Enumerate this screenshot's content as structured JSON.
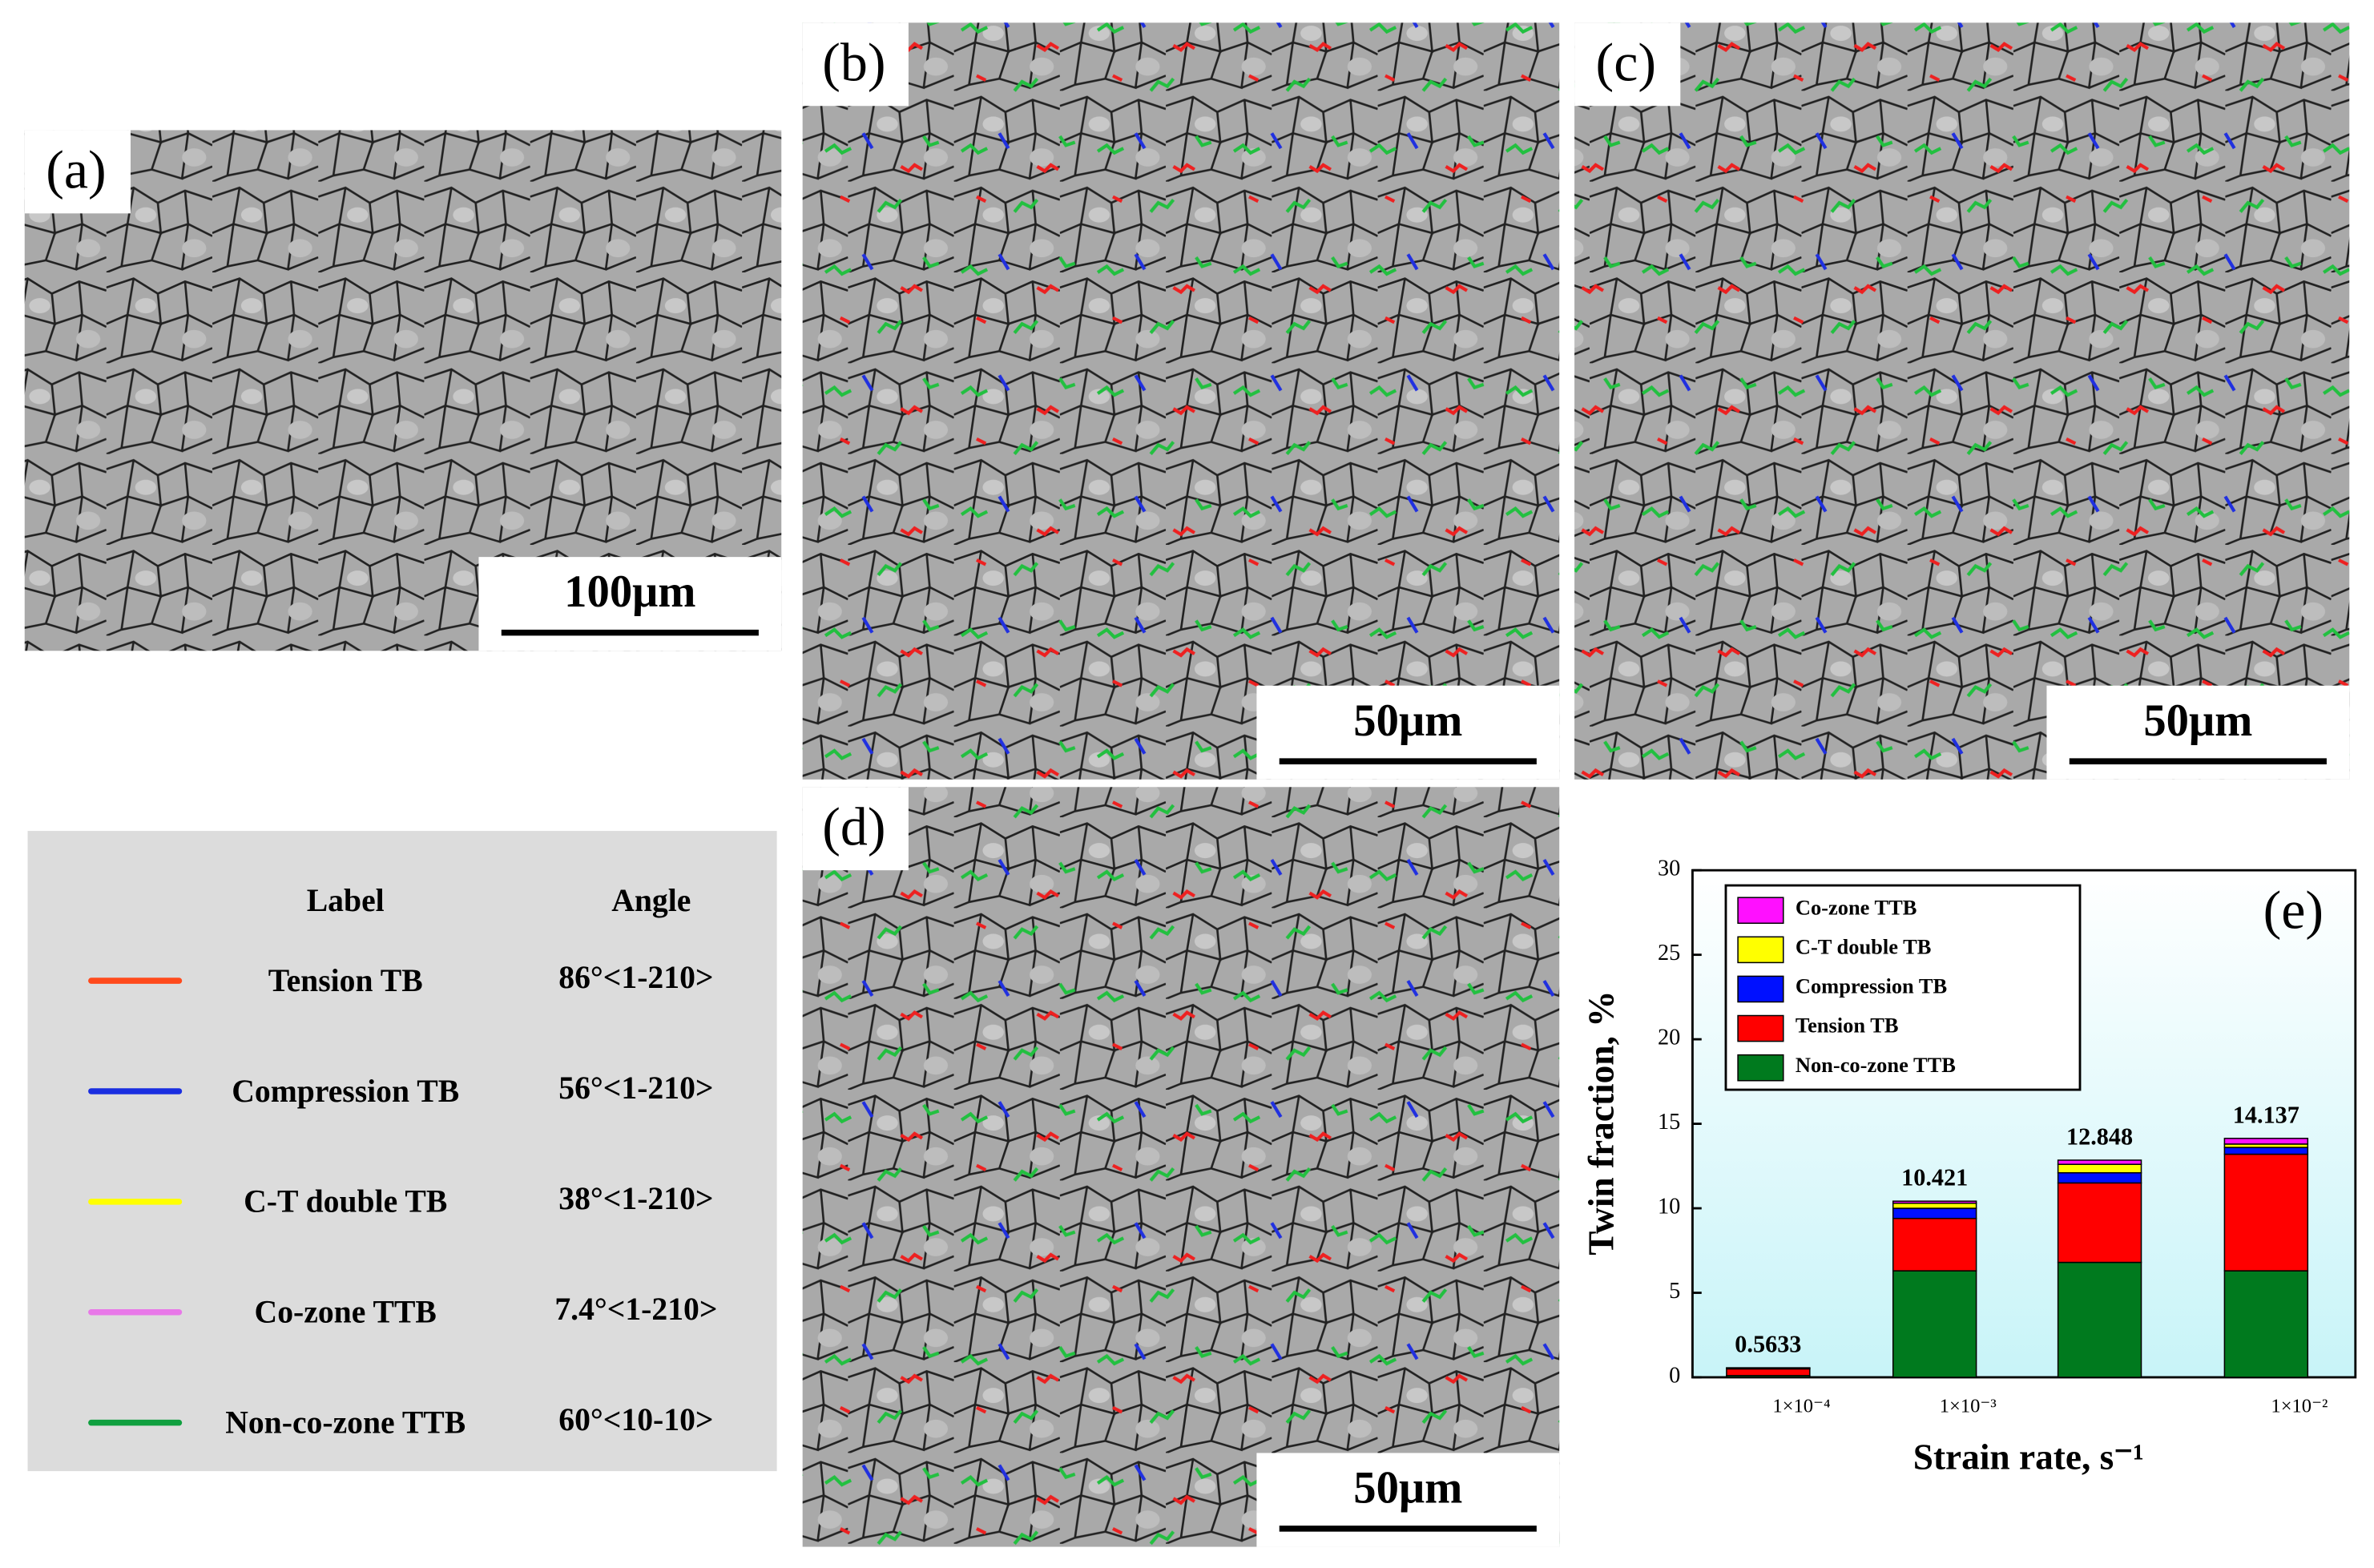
{
  "panels": [
    {
      "label": "(a)",
      "scale_bar": "100μm"
    },
    {
      "label": "(b)",
      "scale_bar": "50μm"
    },
    {
      "label": "(c)",
      "scale_bar": "50μm"
    },
    {
      "label": "(d)",
      "scale_bar": "50μm"
    }
  ],
  "legend_table": {
    "header": [
      "Label",
      "Angle"
    ],
    "rows": [
      {
        "label": "Tension TB",
        "angle": "86°<1-210>",
        "color": "#ff4a1c"
      },
      {
        "label": "Compression TB",
        "angle": "56°<1-210>",
        "color": "#1a2ee0"
      },
      {
        "label": "C-T double TB",
        "angle": "38°<1-210>",
        "color": "#ffff00"
      },
      {
        "label": "Co-zone TTB",
        "angle": "7.4°<1-210>",
        "color": "#e878e8"
      },
      {
        "label": "Non-co-zone TTB",
        "angle": "60°<10-10>",
        "color": "#10a040"
      }
    ]
  },
  "chart_data": {
    "type": "stacked_bar",
    "panel_label": "(e)",
    "x_label": "Strain rate, s⁻¹",
    "y_label": "Twin fraction, %",
    "categories": [
      "1×10⁻⁴",
      "1×10⁻³",
      null,
      "1×10⁻²"
    ],
    "series": [
      {
        "name": "Non-co-zone TTB",
        "color": "#007a1e",
        "values": [
          0.1,
          6.3,
          6.8,
          6.3
        ]
      },
      {
        "name": "Tension TB",
        "color": "#ff0000",
        "values": [
          0.4,
          3.1,
          4.7,
          6.9
        ]
      },
      {
        "name": "Compression TB",
        "color": "#0010ff",
        "values": [
          0.03,
          0.6,
          0.6,
          0.4
        ]
      },
      {
        "name": "C-T double TB",
        "color": "#ffff00",
        "values": [
          0.02,
          0.3,
          0.5,
          0.2
        ]
      },
      {
        "name": "Co-zone TTB",
        "color": "#ff10ff",
        "values": [
          0.0133,
          0.121,
          0.248,
          0.337
        ]
      }
    ],
    "total_labels": [
      0.5633,
      10.421,
      12.848,
      14.137
    ],
    "ylim": [
      0,
      30
    ],
    "yticks": [
      0,
      5,
      10,
      15,
      20,
      25,
      30
    ],
    "legend": "upper left"
  }
}
